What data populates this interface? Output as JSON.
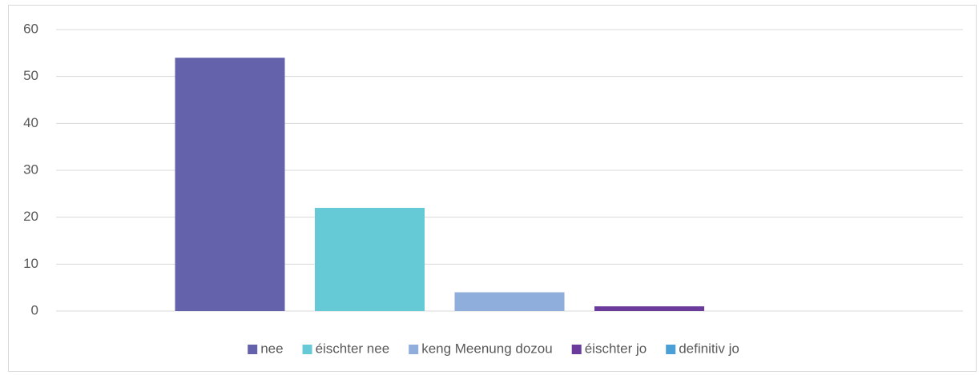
{
  "chart_data": {
    "type": "bar",
    "categories": [
      null
    ],
    "series": [
      {
        "name": "nee",
        "color": "#6462ab",
        "values": [
          54
        ]
      },
      {
        "name": "éischter nee",
        "color": "#66c9d6",
        "values": [
          22
        ]
      },
      {
        "name": "keng Meenung dozou",
        "color": "#8faedc",
        "values": [
          4
        ]
      },
      {
        "name": "éischter jo",
        "color": "#6a3b9a",
        "values": [
          1
        ]
      },
      {
        "name": "definitiv jo",
        "color": "#4a9fd6",
        "values": [
          0
        ]
      }
    ],
    "ylim": [
      0,
      60
    ],
    "yticks": [
      0,
      10,
      20,
      30,
      40,
      50,
      60
    ],
    "grid": true,
    "legend": "bottom"
  }
}
